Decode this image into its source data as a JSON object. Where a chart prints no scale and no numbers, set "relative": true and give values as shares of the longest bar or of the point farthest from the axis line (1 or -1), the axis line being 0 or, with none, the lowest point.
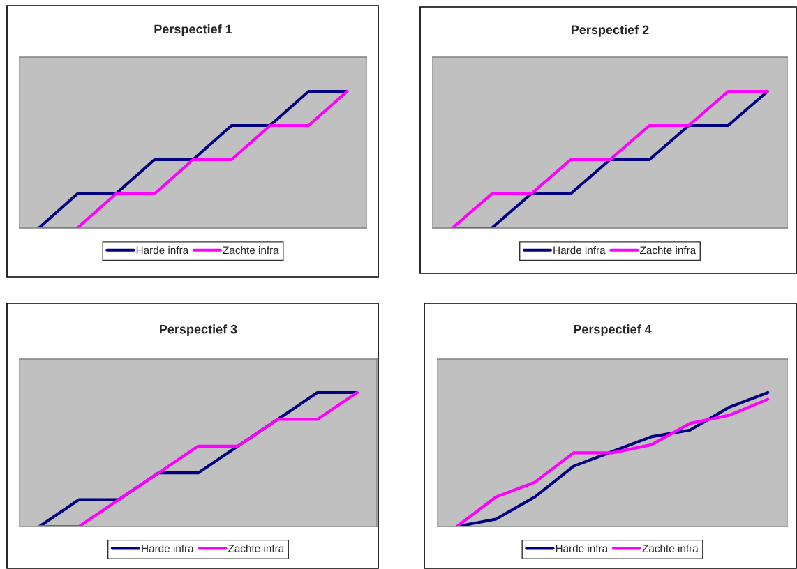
{
  "chart_data": [
    {
      "type": "line",
      "title": "Perspectief 1",
      "relative": true,
      "categories": [
        null,
        null,
        null,
        null,
        null,
        null,
        null,
        null,
        null
      ],
      "grid": false,
      "legend": "bottom",
      "marker": "none",
      "line_style": "solid",
      "series": [
        {
          "name": "Harde infra",
          "color": "#000080",
          "values": [
            0,
            0.25,
            0.25,
            0.5,
            0.5,
            0.75,
            0.75,
            1,
            1
          ]
        },
        {
          "name": "Zachte infra",
          "color": "#ff00ff",
          "values": [
            0,
            0,
            0.25,
            0.25,
            0.5,
            0.5,
            0.75,
            0.75,
            1
          ]
        }
      ]
    },
    {
      "type": "line",
      "title": "Perspectief 2",
      "relative": true,
      "categories": [
        null,
        null,
        null,
        null,
        null,
        null,
        null,
        null,
        null
      ],
      "grid": false,
      "legend": "bottom",
      "marker": "none",
      "line_style": "solid",
      "series": [
        {
          "name": "Harde infra",
          "color": "#000080",
          "values": [
            0,
            0,
            0.25,
            0.25,
            0.5,
            0.5,
            0.75,
            0.75,
            1
          ]
        },
        {
          "name": "Zachte infra",
          "color": "#ff00ff",
          "values": [
            0,
            0.25,
            0.25,
            0.5,
            0.5,
            0.75,
            0.75,
            1,
            1
          ]
        }
      ]
    },
    {
      "type": "line",
      "title": "Perspectief 3",
      "relative": true,
      "categories": [
        null,
        null,
        null,
        null,
        null,
        null,
        null,
        null,
        null
      ],
      "grid": false,
      "legend": "bottom",
      "marker": "none",
      "line_style": "solid",
      "series": [
        {
          "name": "Harde infra",
          "color": "#000080",
          "values": [
            0,
            0.2,
            0.2,
            0.4,
            0.4,
            0.6,
            0.8,
            1,
            1
          ]
        },
        {
          "name": "Zachte infra",
          "color": "#ff00ff",
          "values": [
            0,
            0,
            0.2,
            0.4,
            0.6,
            0.6,
            0.8,
            0.8,
            1
          ]
        }
      ]
    },
    {
      "type": "line",
      "title": "Perspectief 4",
      "relative": true,
      "categories": [
        null,
        null,
        null,
        null,
        null,
        null,
        null,
        null,
        null
      ],
      "grid": false,
      "legend": "bottom",
      "marker": "none",
      "line_style": "solid",
      "series": [
        {
          "name": "Harde infra",
          "color": "#000080",
          "values": [
            0,
            0.055,
            0.22,
            0.45,
            0.56,
            0.67,
            0.72,
            0.89,
            1
          ]
        },
        {
          "name": "Zachte infra",
          "color": "#ff00ff",
          "values": [
            0,
            0.22,
            0.33,
            0.55,
            0.55,
            0.61,
            0.77,
            0.83,
            0.95
          ]
        }
      ]
    }
  ]
}
